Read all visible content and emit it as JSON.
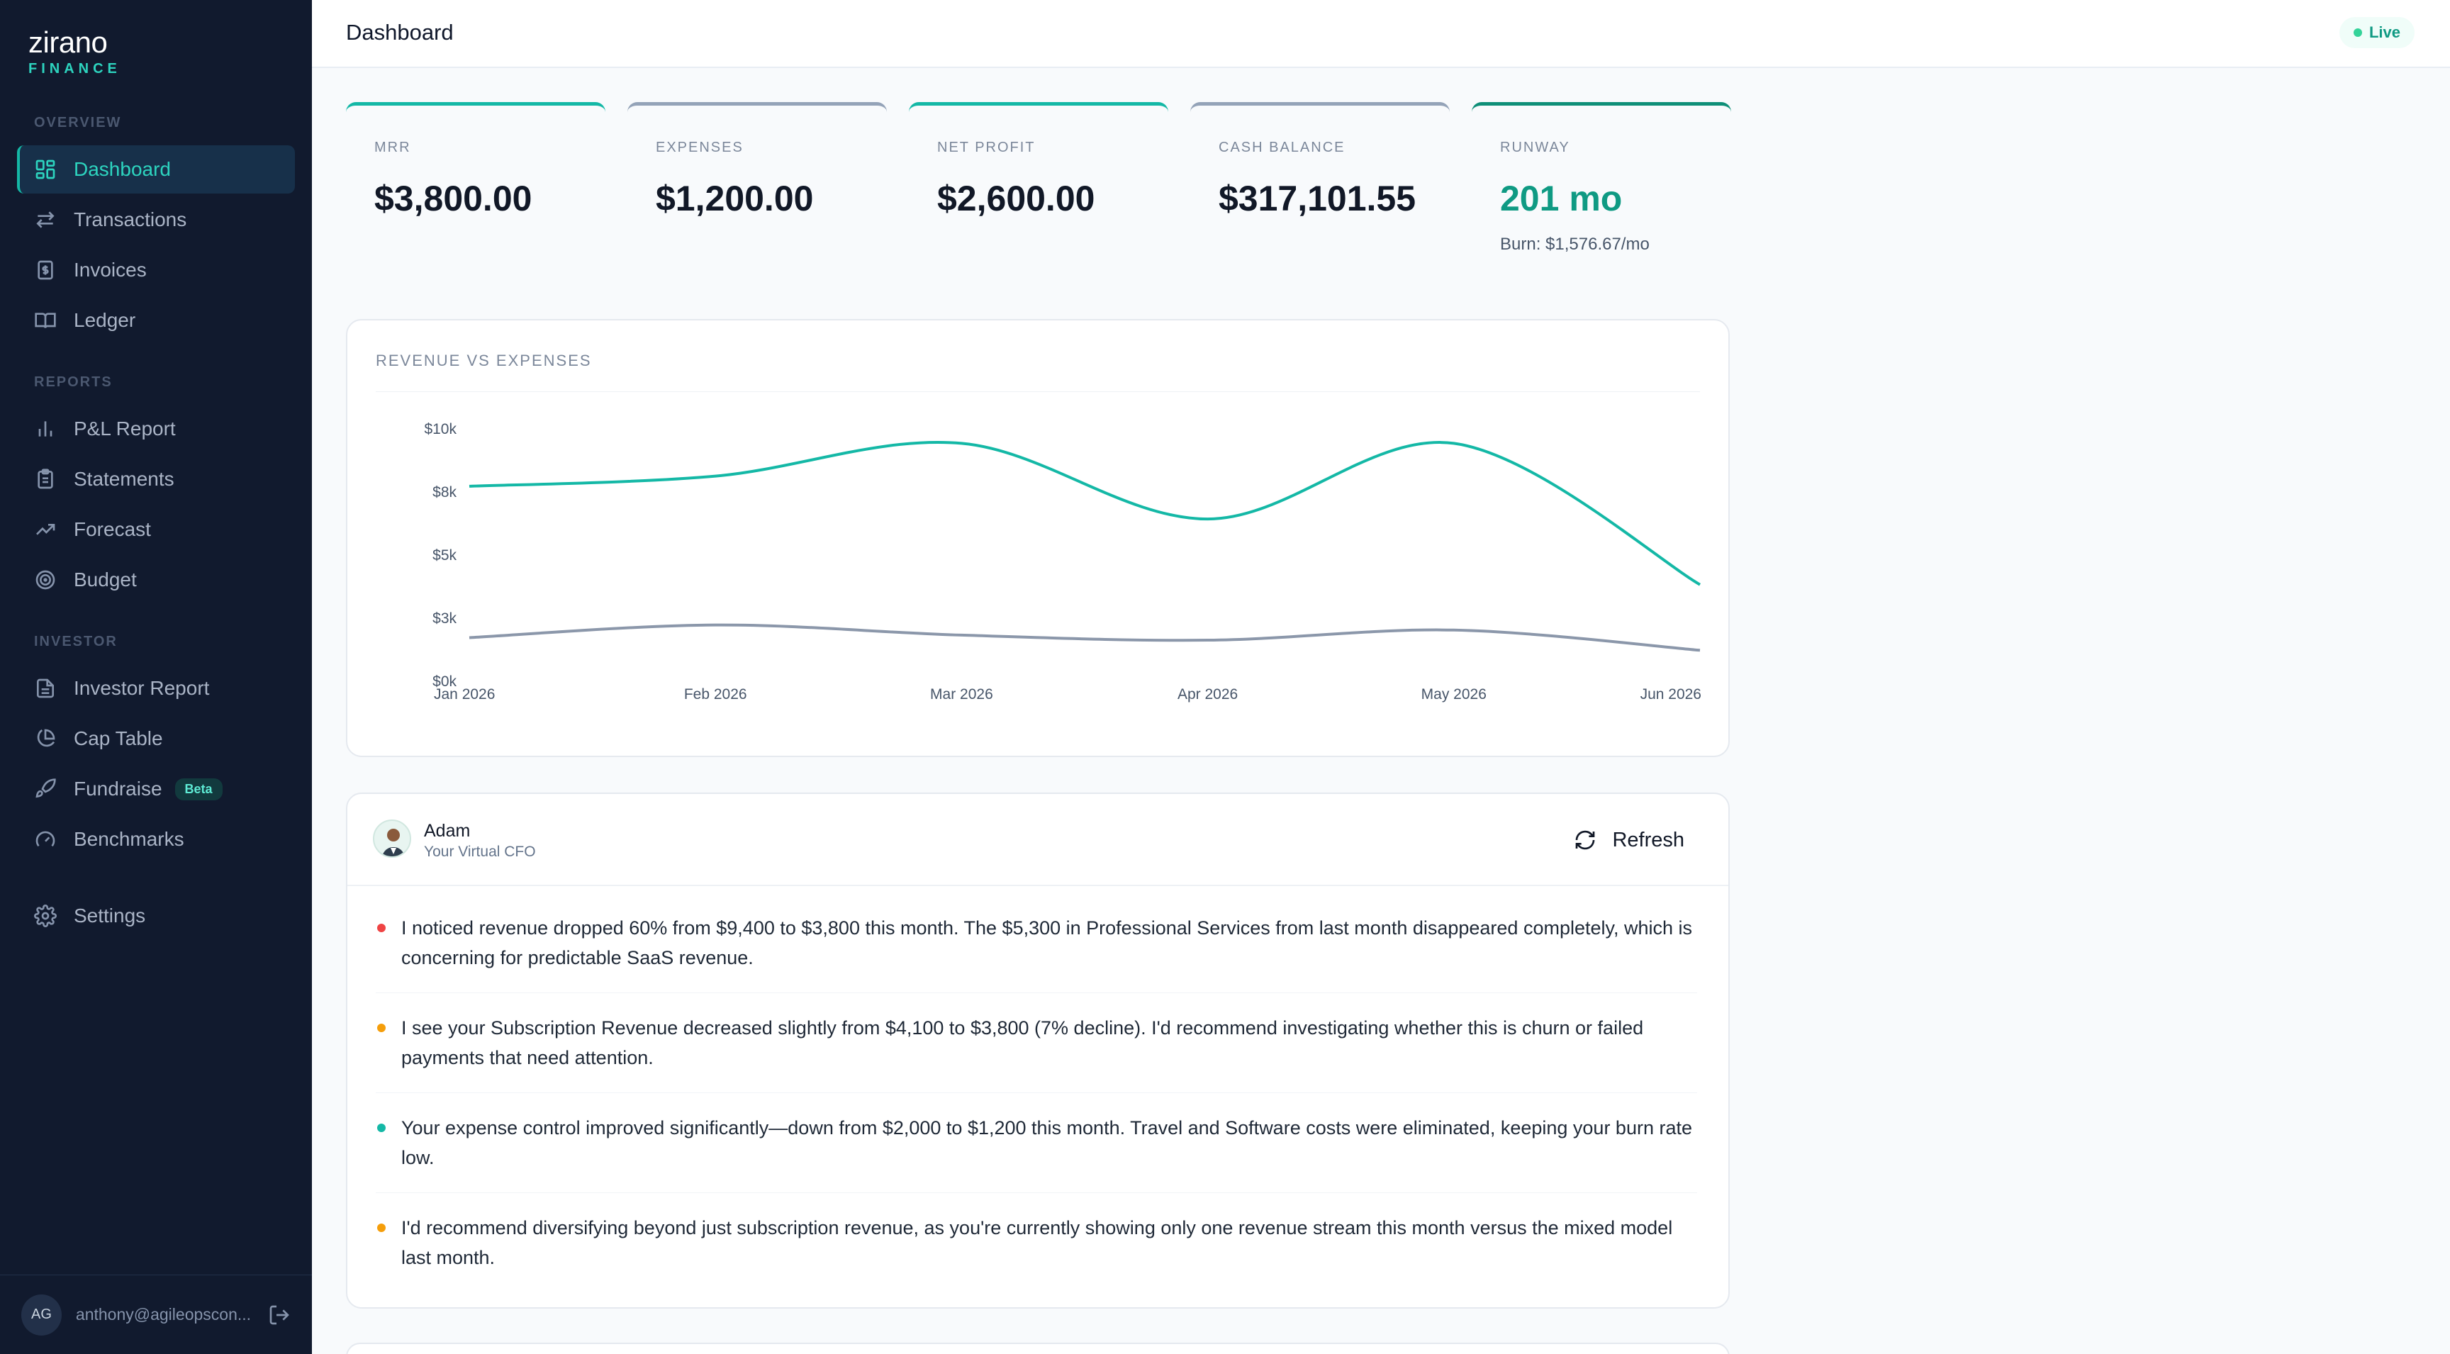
{
  "brand": {
    "name": "zirano",
    "sub": "FINANCE"
  },
  "nav": {
    "overview_title": "OVERVIEW",
    "reports_title": "REPORTS",
    "investor_title": "INVESTOR",
    "items": [
      {
        "label": "Dashboard",
        "icon": "dashboard-icon"
      },
      {
        "label": "Transactions",
        "icon": "arrows-exchange-icon"
      },
      {
        "label": "Invoices",
        "icon": "invoice-icon"
      },
      {
        "label": "Ledger",
        "icon": "book-icon"
      },
      {
        "label": "P&L Report",
        "icon": "bar-chart-icon"
      },
      {
        "label": "Statements",
        "icon": "clipboard-icon"
      },
      {
        "label": "Forecast",
        "icon": "trending-up-icon"
      },
      {
        "label": "Budget",
        "icon": "target-icon"
      },
      {
        "label": "Investor Report",
        "icon": "file-icon"
      },
      {
        "label": "Cap Table",
        "icon": "pie-chart-icon"
      },
      {
        "label": "Fundraise",
        "icon": "rocket-icon",
        "badge": "Beta"
      },
      {
        "label": "Benchmarks",
        "icon": "gauge-icon"
      },
      {
        "label": "Settings",
        "icon": "gear-icon"
      }
    ]
  },
  "user": {
    "initials": "AG",
    "email": "anthony@agileopscon..."
  },
  "header": {
    "title": "Dashboard",
    "status": "Live"
  },
  "kpis": [
    {
      "label": "MRR",
      "value": "$3,800.00"
    },
    {
      "label": "EXPENSES",
      "value": "$1,200.00"
    },
    {
      "label": "NET PROFIT",
      "value": "$2,600.00"
    },
    {
      "label": "CASH BALANCE",
      "value": "$317,101.55"
    },
    {
      "label": "RUNWAY",
      "value": "201 mo",
      "sub": "Burn: $1,576.67/mo"
    }
  ],
  "chart_data": {
    "type": "line",
    "title": "REVENUE VS EXPENSES",
    "categories": [
      "Jan 2026",
      "Feb 2026",
      "Mar 2026",
      "Apr 2026",
      "May 2026",
      "Jun 2026"
    ],
    "y_ticks": [
      "$0k",
      "$3k",
      "$5k",
      "$8k",
      "$10k"
    ],
    "ylim": [
      0,
      10000
    ],
    "grid": false,
    "series": [
      {
        "values": [
          7700,
          8100,
          9400,
          6400,
          9400,
          3800
        ],
        "color": "#14b8a6"
      },
      {
        "values": [
          1700,
          2200,
          1800,
          1600,
          2000,
          1200
        ],
        "color": "#8b97aa"
      }
    ]
  },
  "cfo": {
    "name": "Adam",
    "role": "Your Virtual CFO",
    "refresh_label": "Refresh",
    "insights": [
      {
        "text": "I noticed revenue dropped 60% from $9,400 to $3,800 this month. The $5,300 in Professional Services from last month disappeared completely, which is concerning for predictable SaaS revenue.",
        "color": "#ef4444"
      },
      {
        "text": "I see your Subscription Revenue decreased slightly from $4,100 to $3,800 (7% decline). I'd recommend investigating whether this is churn or failed payments that need attention.",
        "color": "#f59e0b"
      },
      {
        "text": "Your expense control improved significantly—down from $2,000 to $1,200 this month. Travel and Software costs were eliminated, keeping your burn rate low.",
        "color": "#14b8a6"
      },
      {
        "text": "I'd recommend diversifying beyond just subscription revenue, as you're currently showing only one revenue stream this month versus the mixed model last month.",
        "color": "#f59e0b"
      }
    ]
  }
}
